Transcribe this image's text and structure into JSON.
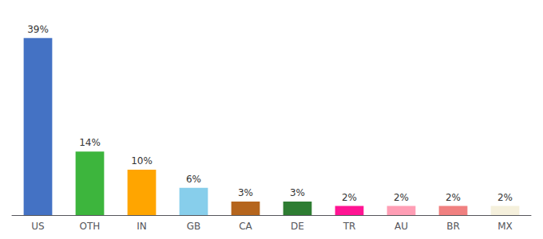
{
  "chart_data": {
    "type": "bar",
    "categories": [
      "US",
      "OTH",
      "IN",
      "GB",
      "CA",
      "DE",
      "TR",
      "AU",
      "BR",
      "MX"
    ],
    "values": [
      39,
      14,
      10,
      6,
      3,
      3,
      2,
      2,
      2,
      2
    ],
    "value_labels": [
      "39%",
      "14%",
      "10%",
      "6%",
      "3%",
      "3%",
      "2%",
      "2%",
      "2%",
      "2%"
    ],
    "colors": [
      "#4472c4",
      "#3db53d",
      "#ffa500",
      "#87ceeb",
      "#b5651d",
      "#2e7d32",
      "#ff1493",
      "#ff9eb5",
      "#f08080",
      "#f5f0dc"
    ],
    "ylim": [
      0,
      43
    ],
    "data_labels": true,
    "tick_labels": "x",
    "grid": false
  }
}
